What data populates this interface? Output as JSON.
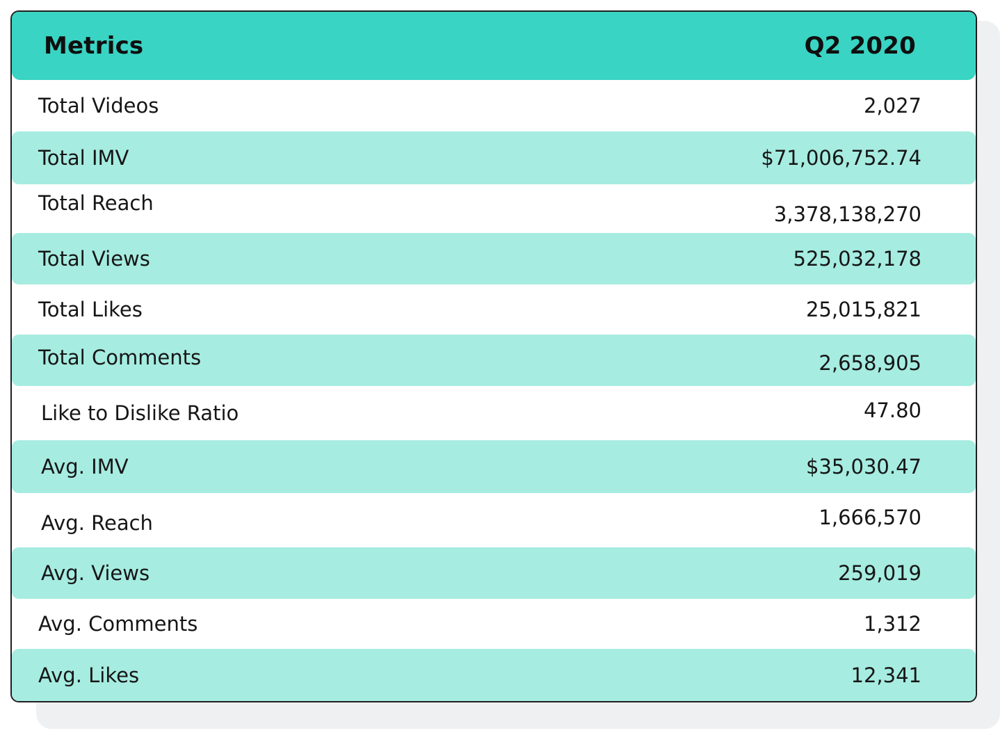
{
  "table": {
    "header": {
      "metric_col": "Metrics",
      "period_col": "Q2 2020"
    },
    "rows": [
      {
        "label": "Total Videos",
        "value": "2,027"
      },
      {
        "label": "Total IMV",
        "value": "$71,006,752.74"
      },
      {
        "label": "Total Reach",
        "value": "3,378,138,270"
      },
      {
        "label": "Total Views",
        "value": "525,032,178"
      },
      {
        "label": "Total Likes",
        "value": "25,015,821"
      },
      {
        "label": "Total Comments",
        "value": "2,658,905"
      },
      {
        "label": "Like to Dislike Ratio",
        "value": "47.80"
      },
      {
        "label": "Avg. IMV",
        "value": "$35,030.47"
      },
      {
        "label": "Avg. Reach",
        "value": "1,666,570"
      },
      {
        "label": "Avg. Views",
        "value": "259,019"
      },
      {
        "label": "Avg. Comments",
        "value": "1,312"
      },
      {
        "label": "Avg. Likes",
        "value": "12,341"
      }
    ]
  },
  "colors": {
    "header_bg": "#39d4c3",
    "shaded_row_bg": "#a6ece1",
    "border": "#1f1f1f",
    "text": "#161616"
  }
}
